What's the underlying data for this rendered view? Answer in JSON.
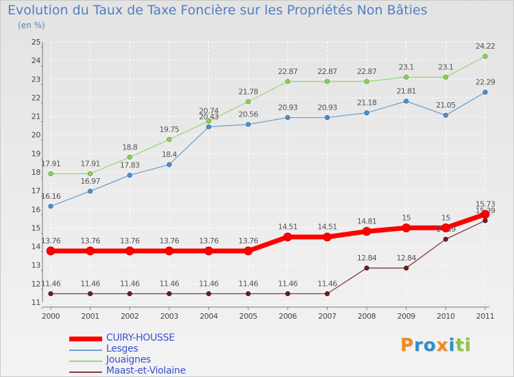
{
  "chart_data": {
    "type": "line",
    "title": "Evolution du Taux de Taxe Foncière sur les Propriétés Non Bâties",
    "ylabel": "(en %)",
    "xlabel": "",
    "x": [
      "2000",
      "2001",
      "2002",
      "2003",
      "2004",
      "2005",
      "2006",
      "2007",
      "2008",
      "2009",
      "2010",
      "2011"
    ],
    "ylim": [
      11,
      25
    ],
    "yticks": [
      "11",
      "12",
      "13",
      "14",
      "15",
      "16",
      "17",
      "18",
      "19",
      "20",
      "21",
      "22",
      "23",
      "24",
      "25"
    ],
    "grid": true,
    "legend_position": "bottom-left",
    "series": [
      {
        "name": "CUIRY-HOUSSE",
        "color": "#ff0000",
        "values": [
          13.76,
          13.76,
          13.76,
          13.76,
          13.76,
          13.76,
          14.51,
          14.51,
          14.81,
          15,
          15,
          15.73
        ],
        "labels": [
          "13.76",
          "13.76",
          "13.76",
          "13.76",
          "13.76",
          "13.76",
          "14.51",
          "14.51",
          "14.81",
          "15",
          "15",
          "15.73"
        ]
      },
      {
        "name": "Lesges",
        "color": "#6fa0cc",
        "values": [
          16.16,
          16.97,
          17.83,
          18.4,
          20.43,
          20.56,
          20.93,
          20.93,
          21.18,
          21.81,
          21.05,
          22.29
        ],
        "labels": [
          "16.16",
          "16.97",
          "17.83",
          "18.4",
          "20.43",
          "20.56",
          "20.93",
          "20.93",
          "21.18",
          "21.81",
          "21.05",
          "22.29"
        ]
      },
      {
        "name": "Jouaignes",
        "color": "#9fd67a",
        "values": [
          17.91,
          17.91,
          18.8,
          19.75,
          20.74,
          21.78,
          22.87,
          22.87,
          22.87,
          23.1,
          23.1,
          24.22
        ],
        "labels": [
          "17.91",
          "17.91",
          "18.8",
          "19.75",
          "20.74",
          "21.78",
          "22.87",
          "22.87",
          "22.87",
          "23.1",
          "23.1",
          "24.22"
        ]
      },
      {
        "name": "Maast-et-Violaine",
        "color": "#7d3b3b",
        "values": [
          11.46,
          11.46,
          11.46,
          11.46,
          11.46,
          11.46,
          11.46,
          11.46,
          12.84,
          12.84,
          14.39,
          15.39
        ],
        "labels": [
          "11.46",
          "11.46",
          "11.46",
          "11.46",
          "11.46",
          "11.46",
          "11.46",
          "11.46",
          "12.84",
          "12.84",
          "14.39",
          "15.39"
        ]
      }
    ]
  },
  "legend": [
    {
      "label": "CUIRY-HOUSSE",
      "color": "#ff0000",
      "name": "cuiry-housse"
    },
    {
      "label": "Lesges",
      "color": "#6fa0cc",
      "name": "lesges"
    },
    {
      "label": "Jouaignes",
      "color": "#9fd67a",
      "name": "jouaignes"
    },
    {
      "label": "Maast-et-Violaine",
      "color": "#7d3b3b",
      "name": "maast-et-violaine"
    }
  ],
  "logo": {
    "letters": [
      {
        "ch": "P",
        "color": "#f08a1c"
      },
      {
        "ch": "r",
        "color": "#2a8fd0"
      },
      {
        "ch": "o",
        "color": "#2a8fd0"
      },
      {
        "ch": "x",
        "color": "#f08a1c"
      },
      {
        "ch": "i",
        "color": "#2a8fd0"
      },
      {
        "ch": "t",
        "color": "#8cc63f"
      },
      {
        "ch": "i",
        "color": "#8cc63f"
      }
    ]
  }
}
